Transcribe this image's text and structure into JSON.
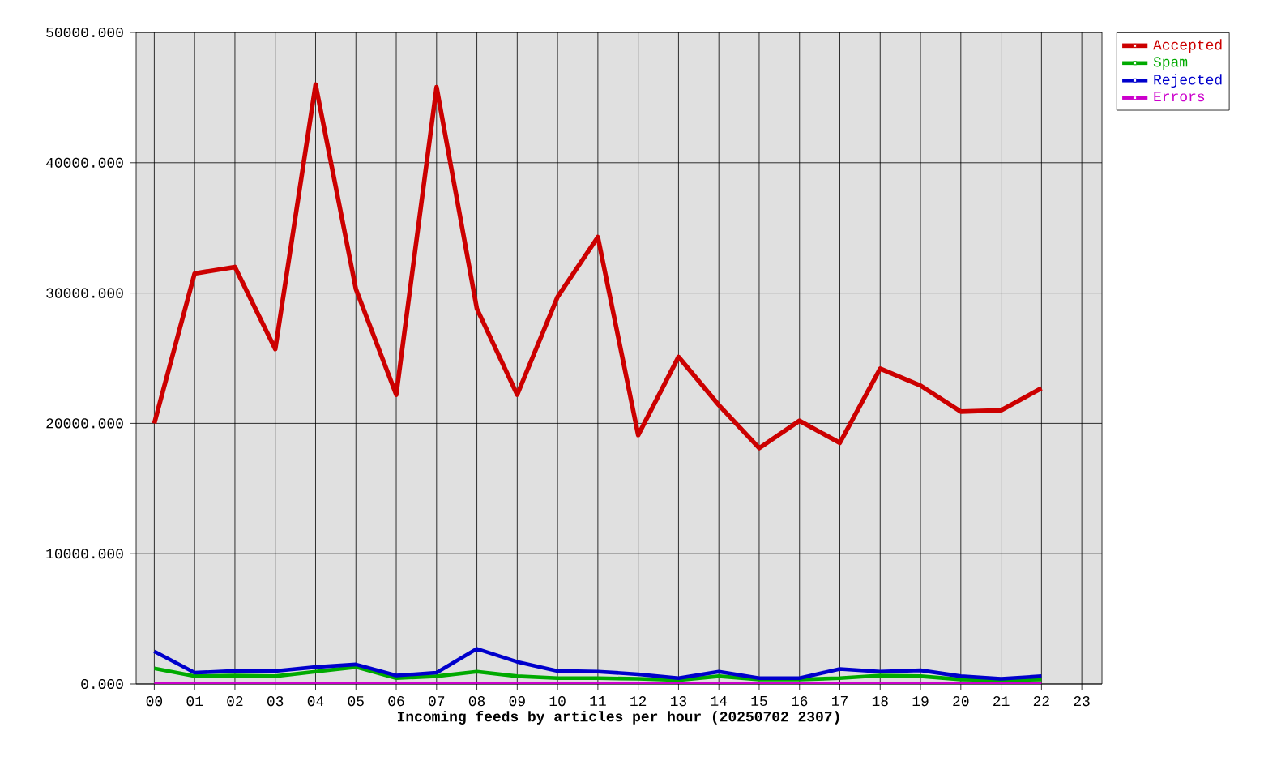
{
  "chart_data": {
    "type": "line",
    "xlabel": "Incoming feeds by articles per hour (20250702 2307)",
    "categories": [
      "00",
      "01",
      "02",
      "03",
      "04",
      "05",
      "06",
      "07",
      "08",
      "09",
      "10",
      "11",
      "12",
      "13",
      "14",
      "15",
      "16",
      "17",
      "18",
      "19",
      "20",
      "21",
      "22",
      "23"
    ],
    "series": [
      {
        "name": "Accepted",
        "color": "#cc0000",
        "values": [
          20000,
          31500,
          32000,
          25700,
          46000,
          30300,
          22200,
          45800,
          28800,
          22200,
          29700,
          34300,
          19100,
          25100,
          21400,
          18100,
          20200,
          18500,
          24200,
          22900,
          20900,
          21000,
          22700,
          null
        ]
      },
      {
        "name": "Spam",
        "color": "#00aa00",
        "values": [
          1200,
          600,
          650,
          600,
          950,
          1300,
          450,
          600,
          950,
          600,
          450,
          450,
          400,
          300,
          600,
          350,
          350,
          450,
          650,
          600,
          350,
          300,
          350,
          null
        ]
      },
      {
        "name": "Rejected",
        "color": "#0000cc",
        "values": [
          2500,
          870,
          1000,
          1000,
          1300,
          1500,
          650,
          870,
          2700,
          1700,
          1000,
          950,
          750,
          450,
          950,
          450,
          450,
          1150,
          950,
          1050,
          600,
          400,
          600,
          null
        ]
      },
      {
        "name": "Errors",
        "color": "#cc00cc",
        "values": [
          0,
          0,
          0,
          0,
          0,
          0,
          0,
          0,
          0,
          0,
          0,
          0,
          0,
          0,
          0,
          0,
          0,
          0,
          0,
          0,
          0,
          0,
          0,
          null
        ]
      }
    ],
    "ylim": [
      0,
      50000
    ],
    "yticks": [
      {
        "value": 0,
        "label": "0.000"
      },
      {
        "value": 10000,
        "label": "10000.000"
      },
      {
        "value": 20000,
        "label": "20000.000"
      },
      {
        "value": 30000,
        "label": "30000.000"
      },
      {
        "value": 40000,
        "label": "40000.000"
      },
      {
        "value": 50000,
        "label": "50000.000"
      }
    ],
    "grid": true,
    "legend": "top right"
  }
}
